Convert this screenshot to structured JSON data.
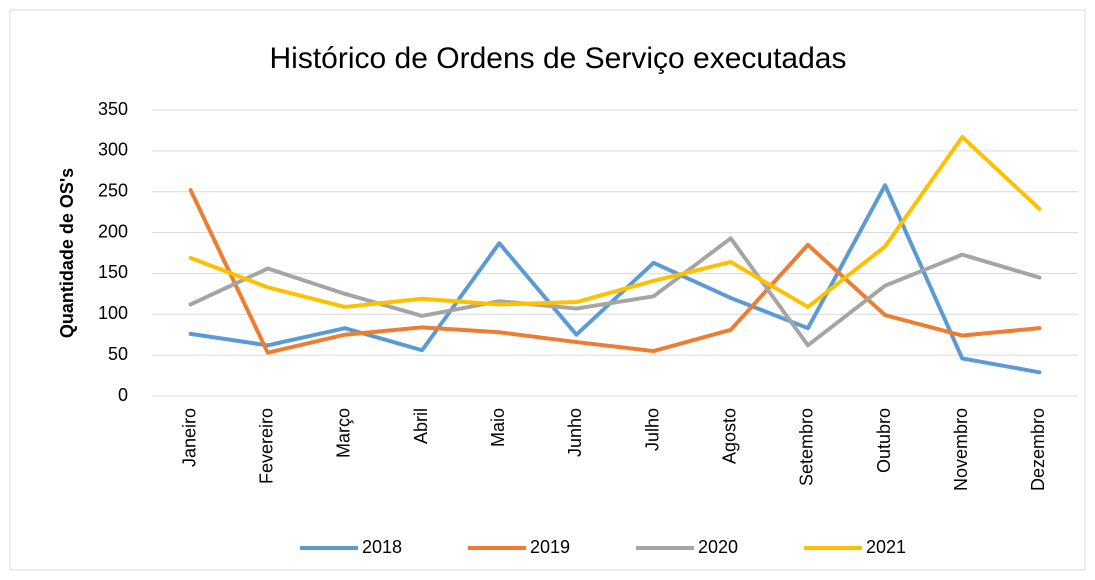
{
  "chart_data": {
    "type": "line",
    "title": "Histórico de Ordens de Serviço executadas",
    "y_label": "Quantidade de OS's",
    "categories": [
      "Janeiro",
      "Fevereiro",
      "Março",
      "Abril",
      "Maio",
      "Junho",
      "Julho",
      "Agosto",
      "Setembro",
      "Outubro",
      "Novembro",
      "Dezembro"
    ],
    "series": [
      {
        "name": "2018",
        "color": "#5b9bd5",
        "values": [
          76,
          62,
          83,
          56,
          187,
          75,
          163,
          120,
          83,
          258,
          46,
          29
        ]
      },
      {
        "name": "2019",
        "color": "#ed7d31",
        "values": [
          252,
          53,
          75,
          84,
          78,
          66,
          55,
          81,
          185,
          99,
          74,
          83
        ]
      },
      {
        "name": "2020",
        "color": "#a5a5a5",
        "values": [
          112,
          156,
          125,
          98,
          116,
          107,
          122,
          193,
          62,
          135,
          173,
          145
        ]
      },
      {
        "name": "2021",
        "color": "#ffc000",
        "values": [
          169,
          133,
          109,
          119,
          112,
          115,
          141,
          164,
          109,
          183,
          317,
          229
        ]
      }
    ],
    "ylim": [
      0,
      350
    ],
    "yticks": [
      0,
      50,
      100,
      150,
      200,
      250,
      300,
      350
    ],
    "grid": true,
    "legend": "bottom"
  }
}
